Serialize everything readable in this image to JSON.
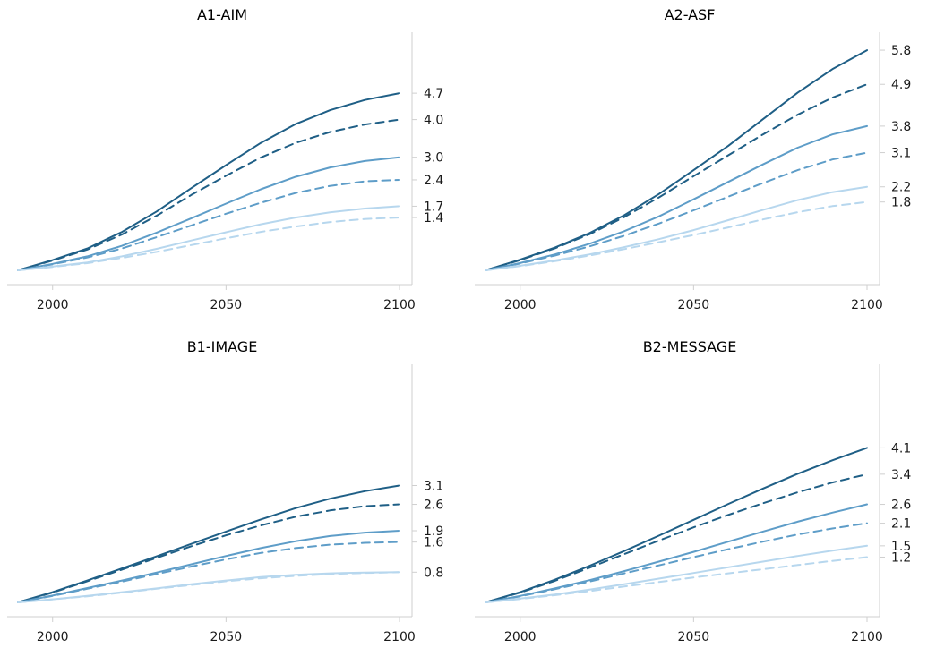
{
  "colors": {
    "dark": "#1f5f86",
    "mid": "#5e9dc8",
    "light": "#b7d7ee",
    "axis": "#cfcfcf"
  },
  "chart_data": [
    {
      "type": "line",
      "title": "A1-AIM",
      "xlim": [
        1990,
        2100
      ],
      "ylim": [
        0,
        5.8
      ],
      "x_ticks": [
        "2000",
        "2050",
        "2100"
      ],
      "y_ticks": [
        "4.7",
        "4.0",
        "3.0",
        "2.4",
        "1.7",
        "1.4"
      ],
      "x": [
        1990,
        2000,
        2010,
        2020,
        2030,
        2040,
        2050,
        2060,
        2070,
        2080,
        2090,
        2100
      ],
      "series": [
        {
          "shade": "dark",
          "dash": false,
          "values": [
            0,
            0.27,
            0.58,
            1.02,
            1.56,
            2.18,
            2.79,
            3.38,
            3.88,
            4.25,
            4.52,
            4.7
          ]
        },
        {
          "shade": "dark",
          "dash": true,
          "values": [
            0,
            0.26,
            0.55,
            0.95,
            1.45,
            2.0,
            2.51,
            2.99,
            3.38,
            3.67,
            3.87,
            4.0
          ]
        },
        {
          "shade": "mid",
          "dash": false,
          "values": [
            0,
            0.17,
            0.37,
            0.65,
            1.0,
            1.38,
            1.77,
            2.15,
            2.48,
            2.73,
            2.9,
            3.0
          ]
        },
        {
          "shade": "mid",
          "dash": true,
          "values": [
            0,
            0.16,
            0.34,
            0.58,
            0.88,
            1.19,
            1.5,
            1.79,
            2.05,
            2.24,
            2.36,
            2.4
          ]
        },
        {
          "shade": "light",
          "dash": false,
          "values": [
            0,
            0.1,
            0.21,
            0.37,
            0.57,
            0.79,
            1.01,
            1.22,
            1.4,
            1.54,
            1.64,
            1.7
          ]
        },
        {
          "shade": "light",
          "dash": true,
          "values": [
            0,
            0.09,
            0.19,
            0.33,
            0.49,
            0.67,
            0.85,
            1.02,
            1.16,
            1.28,
            1.36,
            1.4
          ]
        }
      ]
    },
    {
      "type": "line",
      "title": "A2-ASF",
      "xlim": [
        1990,
        2100
      ],
      "ylim": [
        0,
        5.8
      ],
      "x_ticks": [
        "2000",
        "2050",
        "2100"
      ],
      "y_ticks": [
        "5.8",
        "4.9",
        "3.8",
        "3.1",
        "2.2",
        "1.8"
      ],
      "x": [
        1990,
        2000,
        2010,
        2020,
        2030,
        2040,
        2050,
        2060,
        2070,
        2080,
        2090,
        2100
      ],
      "series": [
        {
          "shade": "dark",
          "dash": false,
          "values": [
            0,
            0.28,
            0.6,
            0.98,
            1.45,
            2.01,
            2.64,
            3.28,
            3.98,
            4.68,
            5.3,
            5.8
          ]
        },
        {
          "shade": "dark",
          "dash": true,
          "values": [
            0,
            0.27,
            0.58,
            0.95,
            1.4,
            1.92,
            2.48,
            3.03,
            3.58,
            4.1,
            4.55,
            4.9
          ]
        },
        {
          "shade": "mid",
          "dash": false,
          "values": [
            0,
            0.19,
            0.42,
            0.7,
            1.03,
            1.42,
            1.87,
            2.33,
            2.79,
            3.23,
            3.58,
            3.8
          ]
        },
        {
          "shade": "mid",
          "dash": true,
          "values": [
            0,
            0.18,
            0.39,
            0.63,
            0.91,
            1.23,
            1.58,
            1.94,
            2.3,
            2.64,
            2.92,
            3.1
          ]
        },
        {
          "shade": "light",
          "dash": false,
          "values": [
            0,
            0.12,
            0.26,
            0.42,
            0.61,
            0.82,
            1.06,
            1.32,
            1.59,
            1.85,
            2.06,
            2.2
          ]
        },
        {
          "shade": "light",
          "dash": true,
          "values": [
            0,
            0.11,
            0.24,
            0.39,
            0.56,
            0.74,
            0.93,
            1.13,
            1.34,
            1.53,
            1.69,
            1.8
          ]
        }
      ]
    },
    {
      "type": "line",
      "title": "B1-IMAGE",
      "xlim": [
        1990,
        2100
      ],
      "ylim": [
        0,
        5.8
      ],
      "x_ticks": [
        "2000",
        "2050",
        "2100"
      ],
      "y_ticks": [
        "3.1",
        "2.6",
        "1.9",
        "1.6",
        "0.8"
      ],
      "x": [
        1990,
        2000,
        2010,
        2020,
        2030,
        2040,
        2050,
        2060,
        2070,
        2080,
        2090,
        2100
      ],
      "series": [
        {
          "shade": "dark",
          "dash": false,
          "values": [
            0,
            0.27,
            0.58,
            0.9,
            1.22,
            1.55,
            1.88,
            2.2,
            2.5,
            2.75,
            2.95,
            3.1
          ]
        },
        {
          "shade": "dark",
          "dash": true,
          "values": [
            0,
            0.26,
            0.56,
            0.87,
            1.18,
            1.49,
            1.78,
            2.04,
            2.27,
            2.44,
            2.55,
            2.6
          ]
        },
        {
          "shade": "mid",
          "dash": false,
          "values": [
            0,
            0.18,
            0.38,
            0.58,
            0.79,
            1.01,
            1.23,
            1.44,
            1.62,
            1.76,
            1.85,
            1.9
          ]
        },
        {
          "shade": "mid",
          "dash": true,
          "values": [
            0,
            0.17,
            0.36,
            0.55,
            0.75,
            0.95,
            1.14,
            1.31,
            1.44,
            1.53,
            1.58,
            1.6
          ]
        },
        {
          "shade": "light",
          "dash": false,
          "values": [
            0,
            0.08,
            0.17,
            0.27,
            0.37,
            0.48,
            0.58,
            0.67,
            0.73,
            0.77,
            0.79,
            0.8
          ]
        },
        {
          "shade": "light",
          "dash": true,
          "values": [
            0,
            0.08,
            0.16,
            0.26,
            0.36,
            0.46,
            0.56,
            0.64,
            0.7,
            0.75,
            0.78,
            0.8
          ]
        }
      ]
    },
    {
      "type": "line",
      "title": "B2-MESSAGE",
      "xlim": [
        1990,
        2100
      ],
      "ylim": [
        0,
        5.8
      ],
      "x_ticks": [
        "2000",
        "2050",
        "2100"
      ],
      "y_ticks": [
        "4.1",
        "3.4",
        "2.6",
        "2.1",
        "1.5",
        "1.2"
      ],
      "x": [
        1990,
        2000,
        2010,
        2020,
        2030,
        2040,
        2050,
        2060,
        2070,
        2080,
        2090,
        2100
      ],
      "series": [
        {
          "shade": "dark",
          "dash": false,
          "values": [
            0,
            0.27,
            0.6,
            0.97,
            1.36,
            1.77,
            2.19,
            2.61,
            3.02,
            3.41,
            3.77,
            4.1
          ]
        },
        {
          "shade": "dark",
          "dash": true,
          "values": [
            0,
            0.26,
            0.57,
            0.92,
            1.28,
            1.64,
            1.99,
            2.32,
            2.63,
            2.92,
            3.18,
            3.4
          ]
        },
        {
          "shade": "mid",
          "dash": false,
          "values": [
            0,
            0.17,
            0.37,
            0.59,
            0.83,
            1.08,
            1.34,
            1.61,
            1.88,
            2.14,
            2.38,
            2.6
          ]
        },
        {
          "shade": "mid",
          "dash": true,
          "values": [
            0,
            0.16,
            0.35,
            0.55,
            0.77,
            0.98,
            1.2,
            1.41,
            1.61,
            1.8,
            1.96,
            2.1
          ]
        },
        {
          "shade": "light",
          "dash": false,
          "values": [
            0,
            0.1,
            0.21,
            0.34,
            0.48,
            0.63,
            0.78,
            0.93,
            1.08,
            1.23,
            1.37,
            1.5
          ]
        },
        {
          "shade": "light",
          "dash": true,
          "values": [
            0,
            0.09,
            0.19,
            0.3,
            0.42,
            0.54,
            0.66,
            0.77,
            0.88,
            0.99,
            1.1,
            1.2
          ]
        }
      ]
    }
  ]
}
